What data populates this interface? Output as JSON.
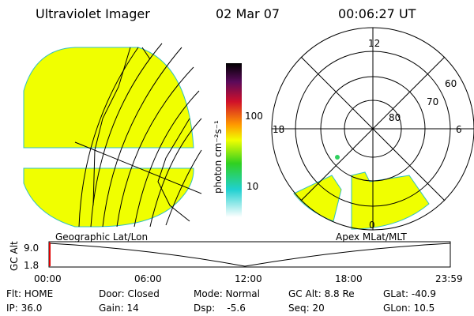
{
  "header": {
    "title": "Ultraviolet Imager",
    "date": "02 Mar 07",
    "time": "00:06:27 UT"
  },
  "colorbar": {
    "label": "photon cm⁻²s⁻¹",
    "ticks": [
      "100",
      "10"
    ]
  },
  "geo_panel": {
    "title": "Geographic Lat/Lon"
  },
  "polar_panel": {
    "title": "Apex MLat/MLT",
    "mlt_labels": [
      "12",
      "18",
      "6",
      "0"
    ],
    "mlat_labels": [
      "60",
      "70",
      "80"
    ]
  },
  "timeline": {
    "y_label": "GC Alt",
    "y_ticks": [
      "9.0",
      "1.8"
    ],
    "x_ticks": [
      "00:00",
      "06:00",
      "12:00",
      "18:00",
      "23:59"
    ]
  },
  "status": {
    "rows": [
      [
        "Flt: HOME",
        "Door: Closed",
        "Mode: Normal",
        "GC Alt: 8.8 Re",
        "GLat: -40.9"
      ],
      [
        "IP: 36.0",
        "Gain: 14",
        "Dsp:    -5.6",
        "Seq: 20",
        "GLon: 10.5"
      ]
    ]
  }
}
